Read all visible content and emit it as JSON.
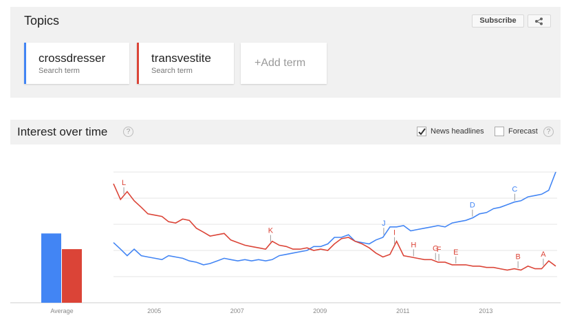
{
  "topics": {
    "title": "Topics",
    "subscribe": "Subscribe",
    "term_kind": "Search term",
    "add_term": "+Add term"
  },
  "interest": {
    "title": "Interest over time",
    "help": "?",
    "news_headlines": {
      "label": "News headlines",
      "checked": true
    },
    "forecast": {
      "label": "Forecast",
      "checked": false
    }
  },
  "chart_data": [
    {
      "type": "line",
      "x": [
        2004,
        2004.17,
        2004.33,
        2004.5,
        2004.67,
        2004.83,
        2005,
        2005.17,
        2005.33,
        2005.5,
        2005.67,
        2005.83,
        2006,
        2006.17,
        2006.33,
        2006.5,
        2006.67,
        2006.83,
        2007,
        2007.17,
        2007.33,
        2007.5,
        2007.67,
        2007.83,
        2008,
        2008.17,
        2008.33,
        2008.5,
        2008.67,
        2008.83,
        2009,
        2009.17,
        2009.33,
        2009.5,
        2009.67,
        2009.83,
        2010,
        2010.17,
        2010.33,
        2010.5,
        2010.67,
        2010.83,
        2011,
        2011.17,
        2011.33,
        2011.5,
        2011.67,
        2011.83,
        2012,
        2012.17,
        2012.33,
        2012.5,
        2012.67,
        2012.83,
        2013,
        2013.17,
        2013.33,
        2013.5,
        2013.67,
        2013.83,
        2014,
        2014.17,
        2014.33,
        2014.5,
        2014.67
      ],
      "series": [
        {
          "name": "crossdresser",
          "color": "#4285f4",
          "values": [
            46,
            41,
            36,
            41,
            36,
            35,
            34,
            33,
            36,
            35,
            34,
            32,
            31,
            29,
            30,
            32,
            34,
            33,
            32,
            33,
            32,
            33,
            32,
            33,
            36,
            37,
            38,
            39,
            40,
            43,
            43,
            45,
            50,
            50,
            52,
            47,
            46,
            45,
            48,
            50,
            58,
            58,
            59,
            55,
            56,
            57,
            58,
            59,
            58,
            61,
            62,
            63,
            65,
            68,
            69,
            72,
            73,
            75,
            77,
            78,
            81,
            82,
            83,
            86,
            100
          ],
          "annotations": [
            {
              "label": "J",
              "x": 2010.52
            },
            {
              "label": "D",
              "x": 2012.66
            },
            {
              "label": "C",
              "x": 2013.68
            }
          ]
        },
        {
          "name": "transvestite",
          "color": "#db4437",
          "values": [
            91,
            79,
            85,
            78,
            73,
            68,
            67,
            66,
            62,
            61,
            64,
            63,
            57,
            54,
            51,
            52,
            53,
            48,
            46,
            44,
            43,
            42,
            41,
            47,
            44,
            43,
            41,
            41,
            42,
            40,
            41,
            40,
            45,
            49,
            50,
            47,
            45,
            42,
            38,
            35,
            37,
            47,
            36,
            35,
            34,
            33,
            33,
            31,
            31,
            29,
            29,
            29,
            28,
            28,
            27,
            27,
            26,
            25,
            26,
            25,
            28,
            26,
            26,
            32,
            28
          ],
          "annotations": [
            {
              "label": "L",
              "x": 2004.25
            },
            {
              "label": "K",
              "x": 2007.79
            },
            {
              "label": "I",
              "x": 2010.78
            },
            {
              "label": "H",
              "x": 2011.24
            },
            {
              "label": "G",
              "x": 2011.77
            },
            {
              "label": "F",
              "x": 2011.85
            },
            {
              "label": "E",
              "x": 2012.26
            },
            {
              "label": "B",
              "x": 2013.76
            },
            {
              "label": "A",
              "x": 2014.37
            }
          ]
        }
      ],
      "xlim": [
        2004,
        2014.67
      ],
      "xticks": [
        2005,
        2007,
        2009,
        2011,
        2013
      ],
      "ylim": [
        0,
        100
      ],
      "yticks": [
        0,
        20,
        40,
        60,
        80,
        100
      ],
      "grid": true
    },
    {
      "type": "bar",
      "categories": [
        "Average"
      ],
      "ylim": [
        0,
        100
      ],
      "series": [
        {
          "color": "#4285f4",
          "values": [
            53
          ]
        },
        {
          "color": "#db4437",
          "values": [
            41
          ]
        }
      ]
    }
  ]
}
